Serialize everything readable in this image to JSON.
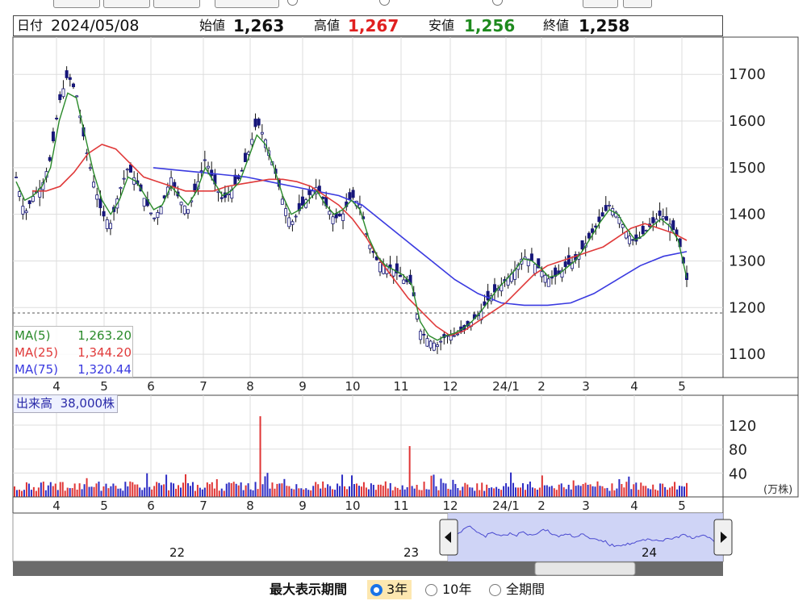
{
  "header": {
    "date_label": "日付",
    "date": "2024/05/08",
    "open_label": "始値",
    "open": "1,263",
    "high_label": "高値",
    "high": "1,267",
    "low_label": "安値",
    "low": "1,256",
    "close_label": "終値",
    "close": "1,258"
  },
  "legend": {
    "ma5_label": "MA(5)",
    "ma5_value": "1,263.20",
    "ma25_label": "MA(25)",
    "ma25_value": "1,344.20",
    "ma75_label": "MA(75)",
    "ma75_value": "1,320.44"
  },
  "volume": {
    "label": "出来高",
    "value": "38,000株",
    "unit": "(万株)",
    "axis_ticks": [
      "120",
      "80",
      "40"
    ]
  },
  "navigator": {
    "year_labels": [
      "22",
      "23",
      "24"
    ]
  },
  "period_selector": {
    "title": "最大表示期間",
    "options": [
      "3年",
      "10年",
      "全期間"
    ],
    "selected": "3年"
  },
  "chart_data": {
    "type": "candlestick",
    "x_tick_labels": [
      "4",
      "5",
      "6",
      "7",
      "8",
      "9",
      "10",
      "11",
      "12",
      "24/1",
      "2",
      "3",
      "4",
      "5"
    ],
    "y_tick_labels": [
      "1700",
      "1600",
      "1500",
      "1400",
      "1300",
      "1200",
      "1100"
    ],
    "ylim": [
      1050,
      1780
    ],
    "price_close_approx": [
      1480,
      1400,
      1440,
      1460,
      1520,
      1640,
      1700,
      1660,
      1550,
      1470,
      1400,
      1380,
      1450,
      1500,
      1470,
      1430,
      1390,
      1420,
      1480,
      1430,
      1410,
      1460,
      1520,
      1470,
      1430,
      1450,
      1480,
      1530,
      1600,
      1560,
      1500,
      1430,
      1380,
      1410,
      1440,
      1460,
      1420,
      1390,
      1400,
      1440,
      1420,
      1340,
      1300,
      1290,
      1280,
      1260,
      1250,
      1150,
      1130,
      1120,
      1140,
      1140,
      1150,
      1170,
      1190,
      1220,
      1240,
      1260,
      1280,
      1310,
      1300,
      1280,
      1260,
      1270,
      1290,
      1300,
      1330,
      1360,
      1390,
      1420,
      1400,
      1360,
      1340,
      1360,
      1380,
      1400,
      1380,
      1350,
      1260
    ],
    "ma5_approx": [
      1470,
      1430,
      1440,
      1460,
      1500,
      1600,
      1660,
      1650,
      1570,
      1490,
      1430,
      1400,
      1430,
      1480,
      1470,
      1440,
      1410,
      1420,
      1460,
      1440,
      1420,
      1450,
      1500,
      1470,
      1440,
      1450,
      1470,
      1520,
      1570,
      1550,
      1500,
      1440,
      1400,
      1410,
      1430,
      1450,
      1420,
      1400,
      1410,
      1430,
      1410,
      1350,
      1310,
      1290,
      1280,
      1270,
      1250,
      1170,
      1140,
      1130,
      1140,
      1145,
      1155,
      1170,
      1190,
      1215,
      1240,
      1260,
      1280,
      1305,
      1300,
      1285,
      1265,
      1270,
      1285,
      1300,
      1325,
      1355,
      1385,
      1410,
      1400,
      1370,
      1345,
      1355,
      1375,
      1390,
      1375,
      1345,
      1263
    ],
    "ma25_approx": [
      1450,
      1450,
      1460,
      1490,
      1530,
      1550,
      1540,
      1510,
      1480,
      1470,
      1460,
      1450,
      1450,
      1450,
      1460,
      1465,
      1470,
      1475,
      1475,
      1470,
      1460,
      1440,
      1420,
      1390,
      1350,
      1300,
      1260,
      1220,
      1190,
      1160,
      1140,
      1150,
      1170,
      1190,
      1210,
      1240,
      1270,
      1290,
      1300,
      1310,
      1320,
      1330,
      1350,
      1370,
      1380,
      1370,
      1360,
      1344
    ],
    "ma75_approx": [
      1500,
      1495,
      1490,
      1485,
      1480,
      1470,
      1460,
      1450,
      1440,
      1420,
      1380,
      1340,
      1300,
      1260,
      1230,
      1210,
      1205,
      1205,
      1210,
      1230,
      1260,
      1290,
      1310,
      1320
    ],
    "volume_ticks": [
      120,
      80,
      40
    ],
    "volume_peaks": [
      {
        "x": "8",
        "value": 135
      },
      {
        "x": "11",
        "value": 85
      }
    ]
  }
}
